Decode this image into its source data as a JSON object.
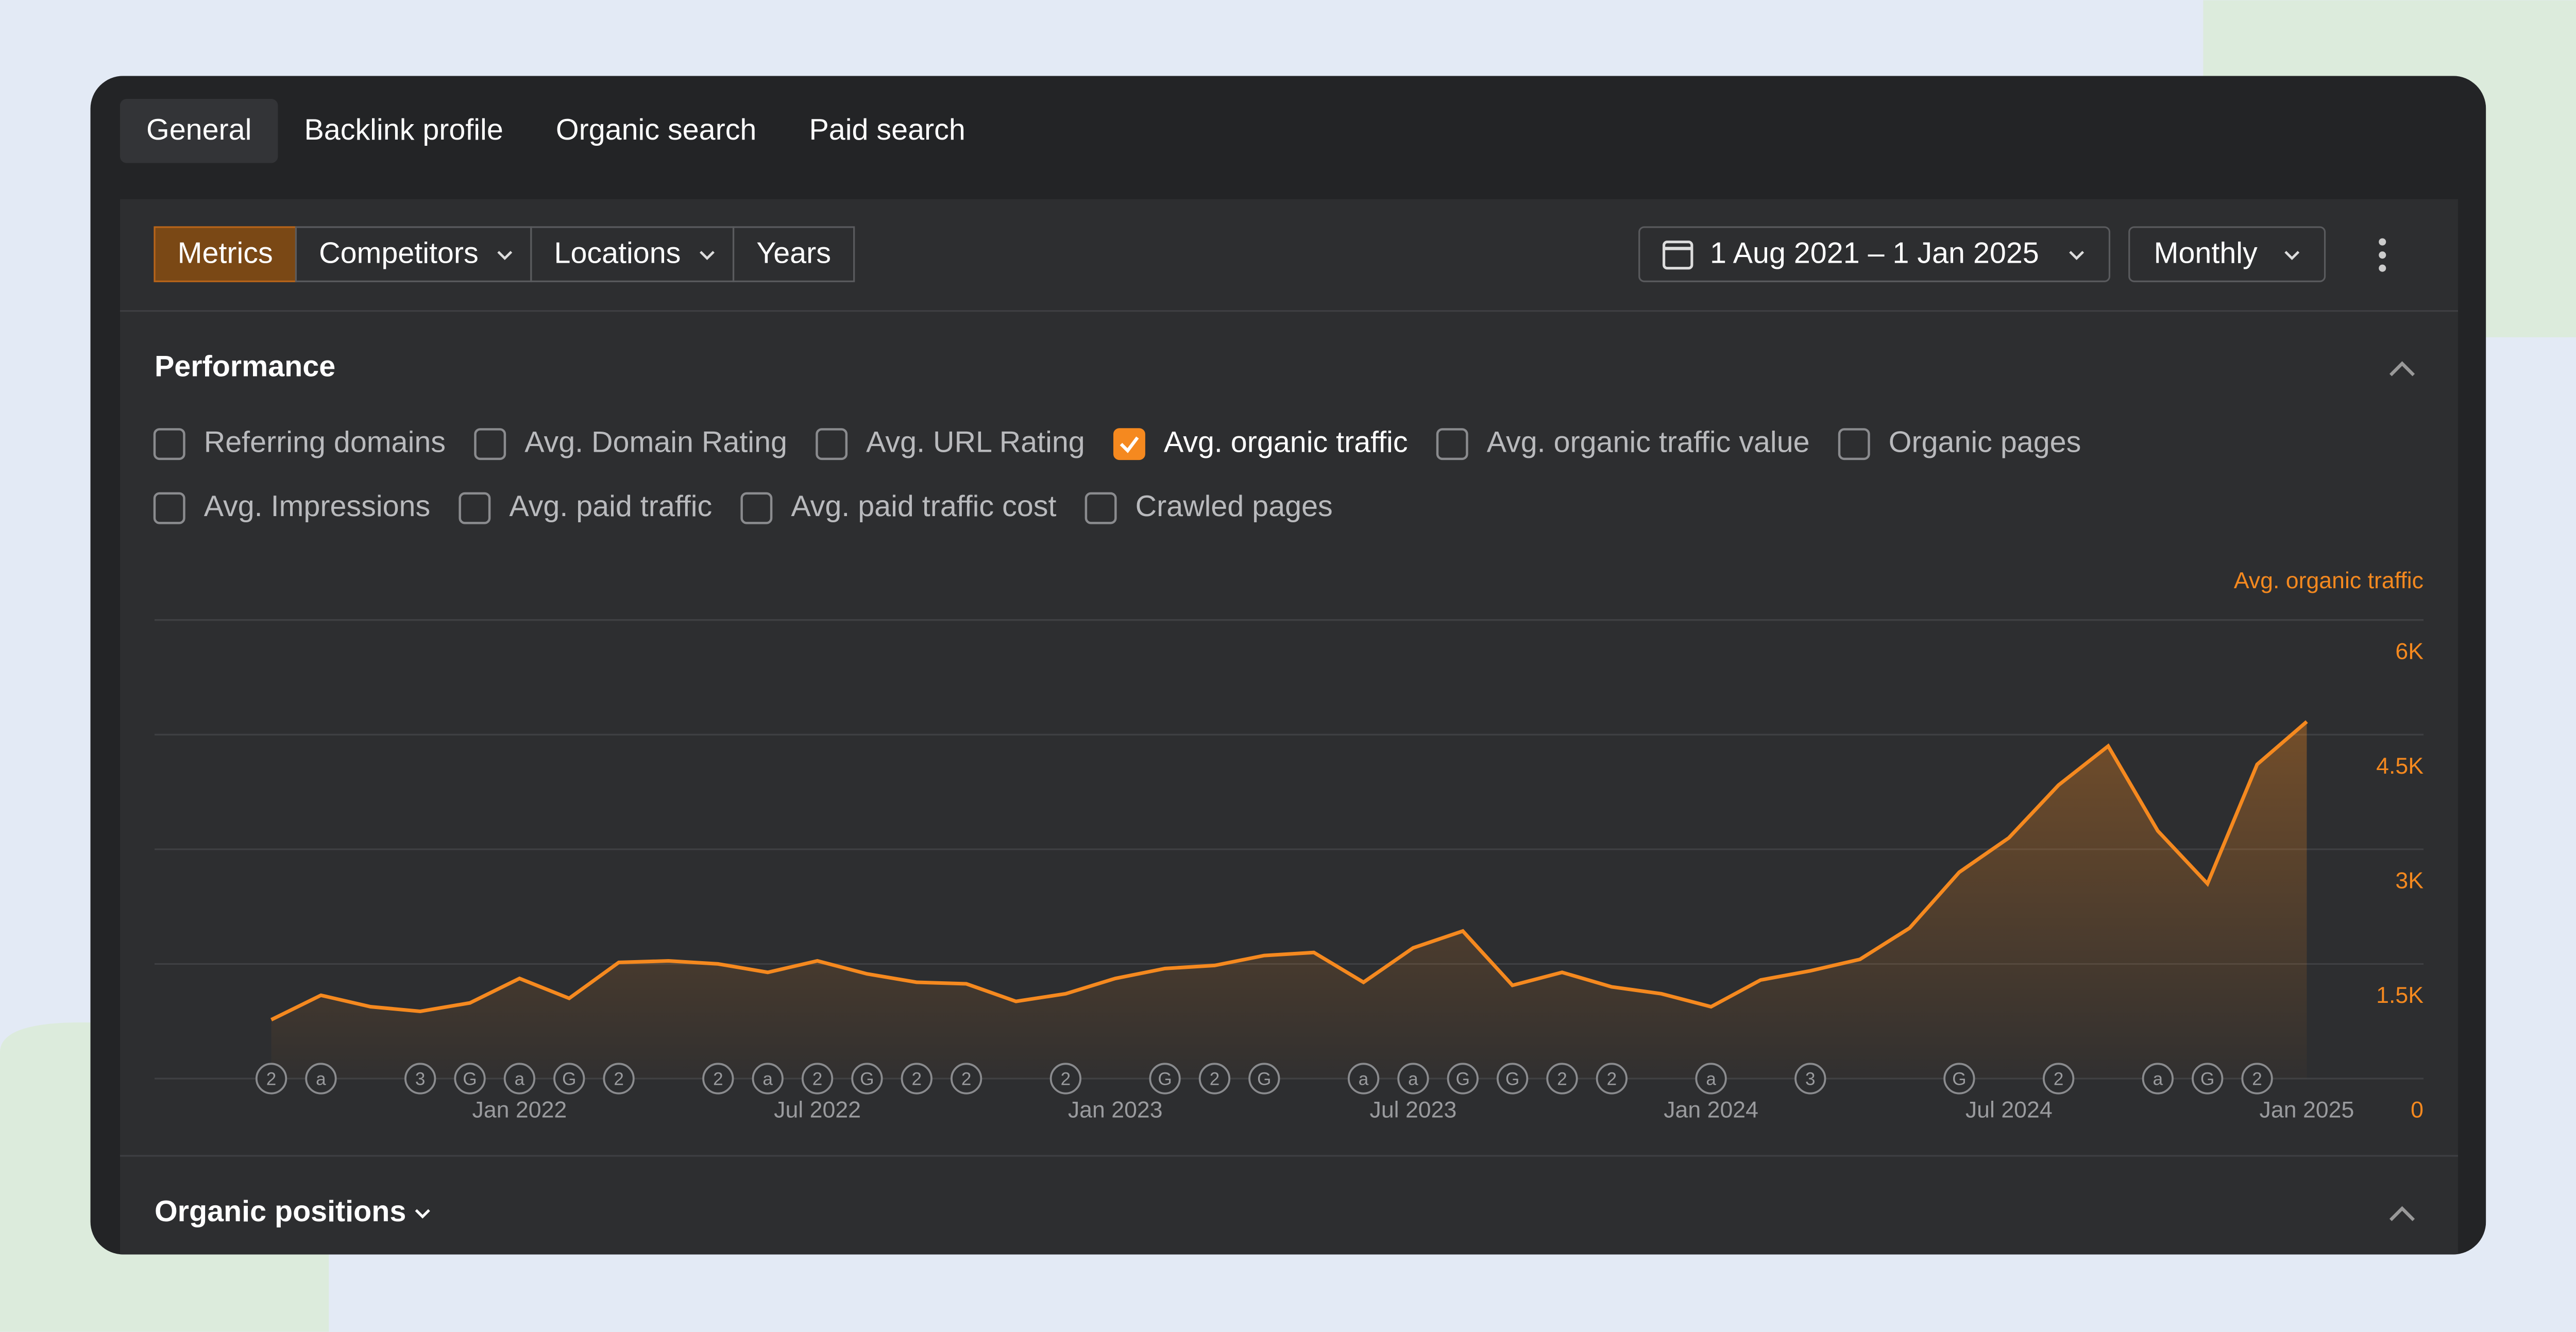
{
  "tabs": [
    "General",
    "Backlink profile",
    "Organic search",
    "Paid search"
  ],
  "toolbar": {
    "buttons": [
      "Metrics",
      "Competitors",
      "Locations",
      "Years"
    ],
    "date_range": "1 Aug 2021 – 1 Jan 2025",
    "interval": "Monthly"
  },
  "performance": {
    "title": "Performance",
    "metrics": [
      {
        "label": "Referring domains",
        "checked": false
      },
      {
        "label": "Avg. Domain Rating",
        "checked": false
      },
      {
        "label": "Avg. URL Rating",
        "checked": false
      },
      {
        "label": "Avg. organic traffic",
        "checked": true
      },
      {
        "label": "Avg. organic traffic value",
        "checked": false
      },
      {
        "label": "Organic pages",
        "checked": false
      },
      {
        "label": "Avg. Impressions",
        "checked": false
      },
      {
        "label": "Avg. paid traffic",
        "checked": false
      },
      {
        "label": "Avg. paid traffic cost",
        "checked": false
      },
      {
        "label": "Crawled pages",
        "checked": false
      }
    ]
  },
  "chart_data": {
    "type": "line",
    "categories": [
      null,
      null,
      null,
      null,
      null,
      "Jan 2022",
      null,
      null,
      null,
      null,
      null,
      "Jul 2022",
      null,
      null,
      null,
      null,
      null,
      "Jan 2023",
      null,
      null,
      null,
      null,
      null,
      "Jul 2023",
      null,
      null,
      null,
      null,
      null,
      "Jan 2024",
      null,
      null,
      null,
      null,
      null,
      "Jul 2024",
      null,
      null,
      null,
      null,
      null,
      "Jan 2025"
    ],
    "series": [
      {
        "name": "Avg. organic traffic",
        "color": "#f5891f",
        "values": [
          770,
          1090,
          940,
          880,
          990,
          1310,
          1050,
          1520,
          1540,
          1500,
          1390,
          1540,
          1370,
          1260,
          1240,
          1010,
          1110,
          1310,
          1440,
          1480,
          1610,
          1650,
          1260,
          1710,
          1930,
          1220,
          1390,
          1200,
          1110,
          940,
          1290,
          1410,
          1560,
          1970,
          2700,
          3150,
          3840,
          4350,
          3240,
          2550,
          4110,
          4670
        ]
      }
    ],
    "events": [
      "2",
      "a",
      null,
      "3",
      "G",
      "a",
      "G",
      "2",
      null,
      "2",
      "a",
      "2",
      "G",
      "2",
      "2",
      null,
      "2",
      null,
      "G",
      "2",
      "G",
      null,
      "a",
      "a",
      "G",
      "G",
      "2",
      "2",
      null,
      "a",
      null,
      "3",
      null,
      null,
      "G",
      null,
      "2",
      null,
      "a",
      "G",
      "2",
      null
    ],
    "ylim": [
      0,
      6000
    ],
    "yticks": [
      {
        "value": 0,
        "label": "0"
      },
      {
        "value": 1500,
        "label": "1.5K"
      },
      {
        "value": 3000,
        "label": "3K"
      },
      {
        "value": 4500,
        "label": "4.5K"
      },
      {
        "value": 6000,
        "label": "6K"
      }
    ],
    "grid": true
  },
  "organic_positions": {
    "title": "Organic positions"
  }
}
